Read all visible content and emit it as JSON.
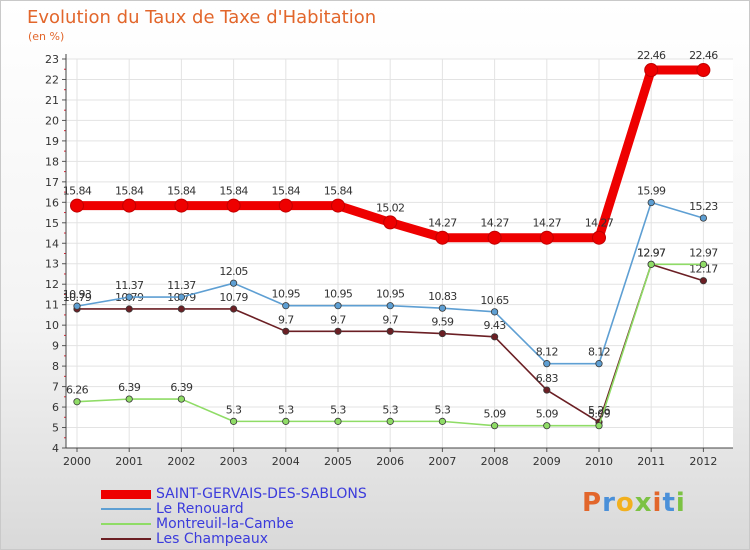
{
  "header": {
    "title": "Evolution du Taux de Taxe d'Habitation",
    "subtitle": "(en %)"
  },
  "logo": {
    "text": "Proxiti",
    "letters": [
      "P",
      "r",
      "o",
      "x",
      "i",
      "t",
      "i"
    ],
    "colors": [
      "#e2662b",
      "#4a90d9",
      "#f2b01e",
      "#7cc243",
      "#e2662b",
      "#4a90d9",
      "#7cc243"
    ]
  },
  "chart_data": {
    "type": "line",
    "title": "Evolution du Taux de Taxe d'Habitation",
    "subtitle": "(en %)",
    "xlabel": "",
    "ylabel": "(en %)",
    "x": [
      "2000",
      "2001",
      "2002",
      "2003",
      "2004",
      "2005",
      "2006",
      "2007",
      "2008",
      "2009",
      "2010",
      "2011",
      "2012"
    ],
    "ylim": [
      4,
      23
    ],
    "yticks": [
      "4",
      "5",
      "6",
      "7",
      "8",
      "9",
      "10",
      "11",
      "12",
      "13",
      "14",
      "15",
      "16",
      "17",
      "18",
      "19",
      "20",
      "21",
      "22",
      "23"
    ],
    "grid": true,
    "legend_position": "bottom-left",
    "series": [
      {
        "name": "SAINT-GERVAIS-DES-SABLONS",
        "color": "#ee0000",
        "legend_color": "#3b3bdc",
        "values": [
          15.84,
          15.84,
          15.84,
          15.84,
          15.84,
          15.84,
          15.02,
          14.27,
          14.27,
          14.27,
          14.27,
          22.46,
          22.46
        ],
        "labels": [
          "15.84",
          "15.84",
          "15.84",
          "15.84",
          "15.84",
          "15.84",
          "15.02",
          "14.27",
          "14.27",
          "14.27",
          "14.27",
          "22.46",
          "22.46"
        ]
      },
      {
        "name": "Le Renouard",
        "color": "#5e9fd3",
        "legend_color": "#3b3bdc",
        "values": [
          10.93,
          11.37,
          11.37,
          12.05,
          10.95,
          10.95,
          10.95,
          10.83,
          10.65,
          8.12,
          8.12,
          15.99,
          15.23
        ],
        "labels": [
          "10.93",
          "11.37",
          "11.37",
          "12.05",
          "10.95",
          "10.95",
          "10.95",
          "10.83",
          "10.65",
          "8.12",
          "8.12",
          "15.99",
          "15.23"
        ]
      },
      {
        "name": "Montreuil-la-Cambe",
        "color": "#8fdc66",
        "legend_color": "#3b3bdc",
        "values": [
          6.26,
          6.39,
          6.39,
          5.3,
          5.3,
          5.3,
          5.3,
          5.3,
          5.09,
          5.09,
          5.09,
          12.97,
          12.97
        ],
        "labels": [
          "6.26",
          "6.39",
          "6.39",
          "5.3",
          "5.3",
          "5.3",
          "5.3",
          "5.3",
          "5.09",
          "5.09",
          "5.09",
          "12.97",
          "12.97"
        ]
      },
      {
        "name": "Les Champeaux",
        "color": "#6b1f24",
        "legend_color": "#3b3bdc",
        "values": [
          10.79,
          10.79,
          10.79,
          10.79,
          9.7,
          9.7,
          9.7,
          9.59,
          9.43,
          6.83,
          5.26,
          12.97,
          12.17
        ],
        "labels": [
          "10.79",
          "10.79",
          "10.79",
          "10.79",
          "9.7",
          "9.7",
          "9.7",
          "9.59",
          "9.43",
          "6.83",
          "5.26",
          "12.97",
          "12.17"
        ]
      }
    ]
  }
}
